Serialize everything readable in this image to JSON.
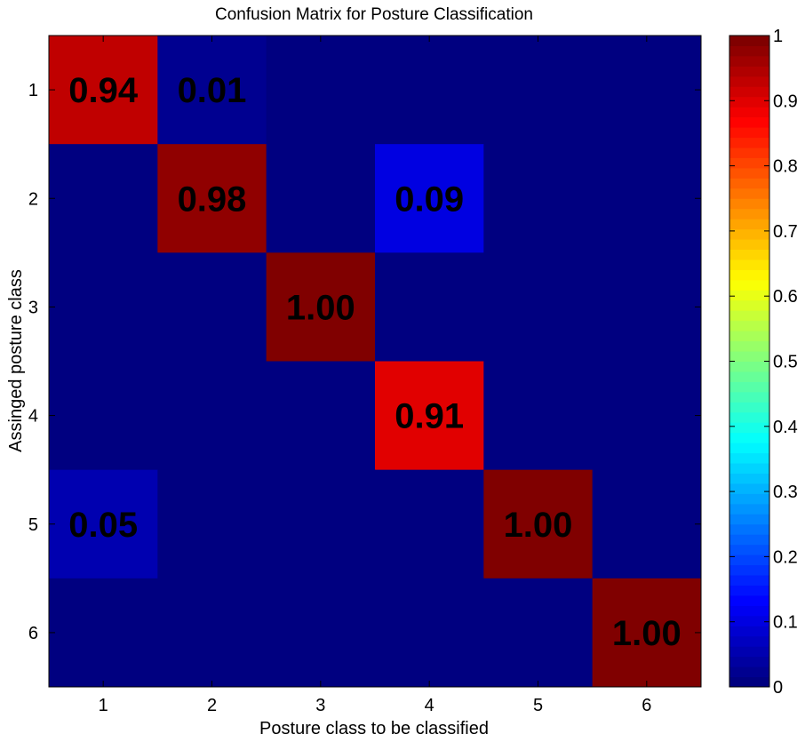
{
  "chart_data": {
    "type": "heatmap",
    "title": "Confusion Matrix for Posture Classification",
    "xlabel": "Posture class to be classified",
    "ylabel": "Assinged posture class",
    "x_categories": [
      "1",
      "2",
      "3",
      "4",
      "5",
      "6"
    ],
    "y_categories": [
      "1",
      "2",
      "3",
      "4",
      "5",
      "6"
    ],
    "values": [
      [
        0.94,
        0.01,
        0.0,
        0.0,
        0.0,
        0.0
      ],
      [
        0.0,
        0.98,
        0.0,
        0.09,
        0.0,
        0.0
      ],
      [
        0.0,
        0.0,
        1.0,
        0.0,
        0.0,
        0.0
      ],
      [
        0.0,
        0.0,
        0.0,
        0.91,
        0.0,
        0.0
      ],
      [
        0.05,
        0.0,
        0.0,
        0.0,
        1.0,
        0.0
      ],
      [
        0.0,
        0.0,
        0.0,
        0.0,
        0.0,
        1.0
      ]
    ],
    "cell_labels": [
      [
        "0.94",
        "0.01",
        "",
        "",
        "",
        ""
      ],
      [
        "",
        "0.98",
        "",
        "0.09",
        "",
        ""
      ],
      [
        "",
        "",
        "1.00",
        "",
        "",
        ""
      ],
      [
        "",
        "",
        "",
        "0.91",
        "",
        ""
      ],
      [
        "0.05",
        "",
        "",
        "",
        "1.00",
        ""
      ],
      [
        "",
        "",
        "",
        "",
        "",
        "1.00"
      ]
    ],
    "colorbar": {
      "colormap": "jet",
      "range": [
        0,
        1
      ],
      "ticks": [
        "0",
        "0.1",
        "0.2",
        "0.3",
        "0.4",
        "0.5",
        "0.6",
        "0.7",
        "0.8",
        "0.9",
        "1"
      ]
    },
    "grid": false
  }
}
